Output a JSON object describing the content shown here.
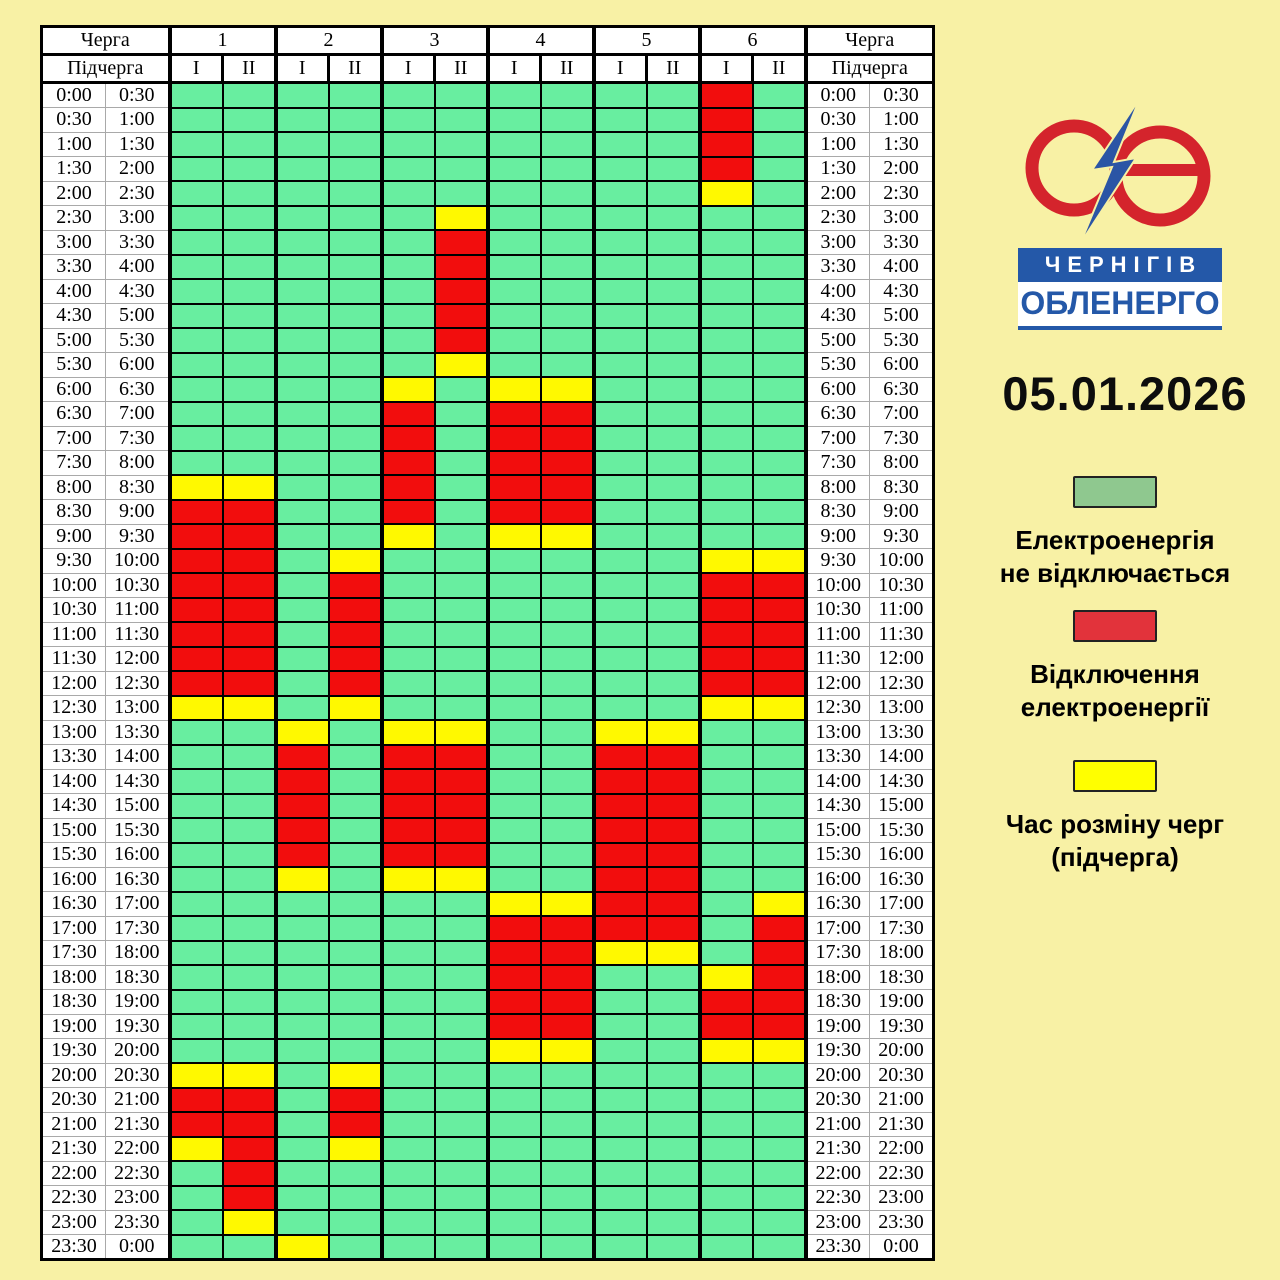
{
  "date": "05.01.2026",
  "logo": {
    "city": "ЧЕРНІГІВ",
    "company": "ОБЛЕНЕРГО"
  },
  "legend": [
    {
      "key": "G",
      "color": "#8FC88F",
      "line1": "Електроенергія",
      "line2": "не відключається"
    },
    {
      "key": "R",
      "color": "#E2333B",
      "line1": "Відключення",
      "line2": "електроенергії"
    },
    {
      "key": "Y",
      "color": "#FFFF00",
      "line1": "Час розміну черг",
      "line2": "(підчерга)"
    }
  ],
  "table": {
    "queue_header": "Черга",
    "subqueue_header": "Підчерга",
    "queues": [
      "1",
      "2",
      "3",
      "4",
      "5",
      "6"
    ],
    "subqueues": [
      "I",
      "II"
    ]
  },
  "colors": {
    "background": "#F8F1A5",
    "cell": {
      "G": "#68EEA0",
      "R": "#F20D0D",
      "Y": "#FFF900"
    },
    "logo_red": "#D4242C",
    "logo_blue": "#2B55A5"
  },
  "chart_data": {
    "type": "table",
    "columns": [
      "1-I",
      "1-II",
      "2-I",
      "2-II",
      "3-I",
      "3-II",
      "4-I",
      "4-II",
      "5-I",
      "5-II",
      "6-I",
      "6-II"
    ],
    "cell_states": {
      "G": "Електроенергія не відключається",
      "R": "Відключення електроенергії",
      "Y": "Час розміну черг (підчерга)"
    },
    "rows": [
      {
        "start": "0:00",
        "end": "0:30",
        "cells": "GGGGGGGGGGRG"
      },
      {
        "start": "0:30",
        "end": "1:00",
        "cells": "GGGGGGGGGGRG"
      },
      {
        "start": "1:00",
        "end": "1:30",
        "cells": "GGGGGGGGGGRG"
      },
      {
        "start": "1:30",
        "end": "2:00",
        "cells": "GGGGGGGGGGRG"
      },
      {
        "start": "2:00",
        "end": "2:30",
        "cells": "GGGGGGGGGGYG"
      },
      {
        "start": "2:30",
        "end": "3:00",
        "cells": "GGGGGYGGGGGG"
      },
      {
        "start": "3:00",
        "end": "3:30",
        "cells": "GGGGGRGGGGGG"
      },
      {
        "start": "3:30",
        "end": "4:00",
        "cells": "GGGGGRGGGGGG"
      },
      {
        "start": "4:00",
        "end": "4:30",
        "cells": "GGGGGRGGGGGG"
      },
      {
        "start": "4:30",
        "end": "5:00",
        "cells": "GGGGGRGGGGGG"
      },
      {
        "start": "5:00",
        "end": "5:30",
        "cells": "GGGGGRGGGGGG"
      },
      {
        "start": "5:30",
        "end": "6:00",
        "cells": "GGGGGYGGGGGG"
      },
      {
        "start": "6:00",
        "end": "6:30",
        "cells": "GGGGYGYYGGGG"
      },
      {
        "start": "6:30",
        "end": "7:00",
        "cells": "GGGGRGRRGGGG"
      },
      {
        "start": "7:00",
        "end": "7:30",
        "cells": "GGGGRGRRGGGG"
      },
      {
        "start": "7:30",
        "end": "8:00",
        "cells": "GGGGRGRRGGGG"
      },
      {
        "start": "8:00",
        "end": "8:30",
        "cells": "YYGGRGRRGGGG"
      },
      {
        "start": "8:30",
        "end": "9:00",
        "cells": "RRGGRGRRGGGG"
      },
      {
        "start": "9:00",
        "end": "9:30",
        "cells": "RRGGYGYYGGGG"
      },
      {
        "start": "9:30",
        "end": "10:00",
        "cells": "RRGYGGGGGGYY"
      },
      {
        "start": "10:00",
        "end": "10:30",
        "cells": "RRGRGGGGGGRR"
      },
      {
        "start": "10:30",
        "end": "11:00",
        "cells": "RRGRGGGGGGRR"
      },
      {
        "start": "11:00",
        "end": "11:30",
        "cells": "RRGRGGGGGGRR"
      },
      {
        "start": "11:30",
        "end": "12:00",
        "cells": "RRGRGGGGGGRR"
      },
      {
        "start": "12:00",
        "end": "12:30",
        "cells": "RRGRGGGGGGRR"
      },
      {
        "start": "12:30",
        "end": "13:00",
        "cells": "YYGYGGGGGGYY"
      },
      {
        "start": "13:00",
        "end": "13:30",
        "cells": "GGYGYYGGYYGG"
      },
      {
        "start": "13:30",
        "end": "14:00",
        "cells": "GGRGRRGGRRGG"
      },
      {
        "start": "14:00",
        "end": "14:30",
        "cells": "GGRGRRGGRRGG"
      },
      {
        "start": "14:30",
        "end": "15:00",
        "cells": "GGRGRRGGRRGG"
      },
      {
        "start": "15:00",
        "end": "15:30",
        "cells": "GGRGRRGGRRGG"
      },
      {
        "start": "15:30",
        "end": "16:00",
        "cells": "GGRGRRGGRRGG"
      },
      {
        "start": "16:00",
        "end": "16:30",
        "cells": "GGYGYYGGRRGG"
      },
      {
        "start": "16:30",
        "end": "17:00",
        "cells": "GGGGGGYYRRGY"
      },
      {
        "start": "17:00",
        "end": "17:30",
        "cells": "GGGGGGRRRRGR"
      },
      {
        "start": "17:30",
        "end": "18:00",
        "cells": "GGGGGGRRYYGR"
      },
      {
        "start": "18:00",
        "end": "18:30",
        "cells": "GGGGGGRRGGYR"
      },
      {
        "start": "18:30",
        "end": "19:00",
        "cells": "GGGGGGRRGGRR"
      },
      {
        "start": "19:00",
        "end": "19:30",
        "cells": "GGGGGGRRGGRR"
      },
      {
        "start": "19:30",
        "end": "20:00",
        "cells": "GGGGGGYYGGYY"
      },
      {
        "start": "20:00",
        "end": "20:30",
        "cells": "YYGYGGGGGGGG"
      },
      {
        "start": "20:30",
        "end": "21:00",
        "cells": "RRGRGGGGGGGG"
      },
      {
        "start": "21:00",
        "end": "21:30",
        "cells": "RRGRGGGGGGGG"
      },
      {
        "start": "21:30",
        "end": "22:00",
        "cells": "YRGYGGGGGGGG"
      },
      {
        "start": "22:00",
        "end": "22:30",
        "cells": "GRGGGGGGGGGG"
      },
      {
        "start": "22:30",
        "end": "23:00",
        "cells": "GRGGGGGGGGGG"
      },
      {
        "start": "23:00",
        "end": "23:30",
        "cells": "GYGGGGGGGGGG"
      },
      {
        "start": "23:30",
        "end": "0:00",
        "cells": "GGYGGGGGGGGG"
      }
    ]
  }
}
